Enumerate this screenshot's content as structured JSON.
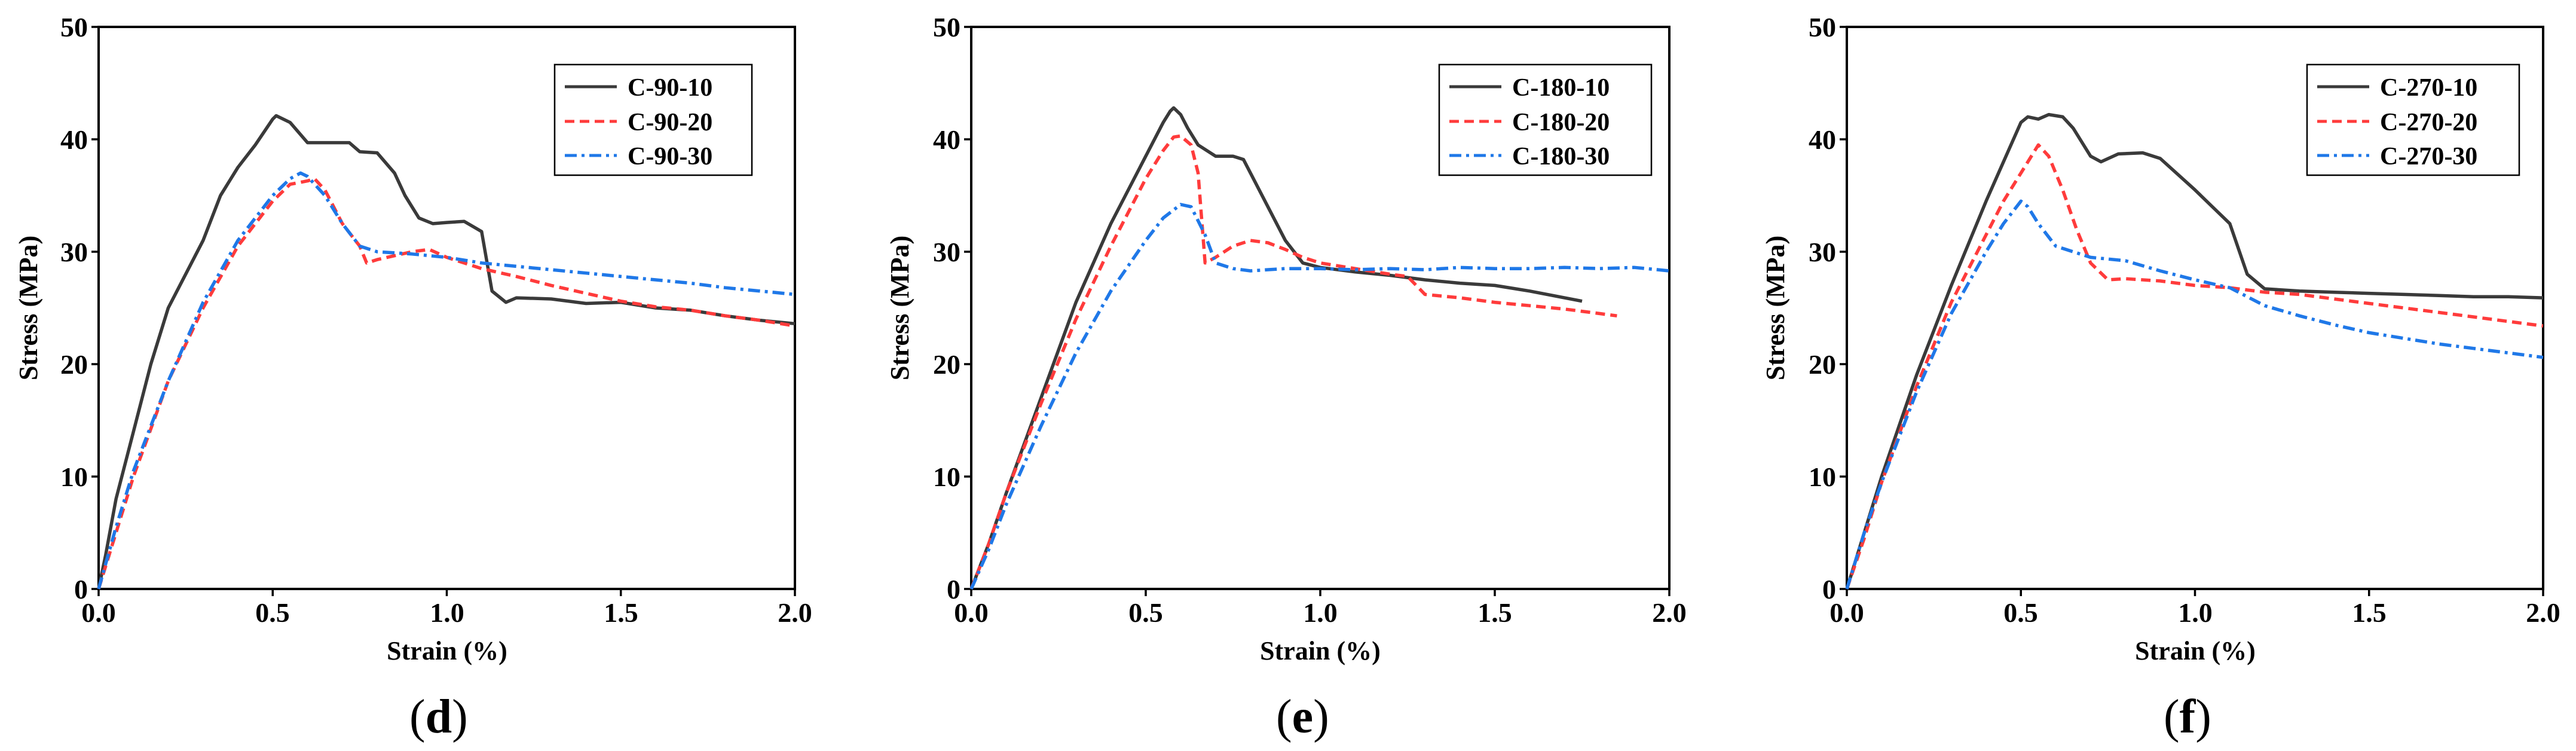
{
  "chart_data": [
    {
      "type": "line",
      "panel_label": "d",
      "xlabel": "Strain (%)",
      "ylabel": "Stress (MPa)",
      "xlim": [
        0,
        2.0
      ],
      "ylim": [
        0,
        50
      ],
      "xticks": [
        "0.0",
        "0.5",
        "1.0",
        "1.5",
        "2.0"
      ],
      "yticks": [
        "0",
        "10",
        "20",
        "30",
        "40",
        "50"
      ],
      "legend_position": "top-right",
      "series": [
        {
          "name": "C-90-10",
          "color": "#3a3a3a",
          "dash": "solid",
          "points": [
            [
              0,
              0
            ],
            [
              0.02,
              3
            ],
            [
              0.05,
              8
            ],
            [
              0.1,
              14
            ],
            [
              0.15,
              20
            ],
            [
              0.2,
              25
            ],
            [
              0.3,
              31
            ],
            [
              0.35,
              35
            ],
            [
              0.4,
              37.5
            ],
            [
              0.45,
              39.5
            ],
            [
              0.5,
              41.8
            ],
            [
              0.51,
              42.1
            ],
            [
              0.55,
              41.5
            ],
            [
              0.6,
              39.7
            ],
            [
              0.72,
              39.7
            ],
            [
              0.75,
              38.9
            ],
            [
              0.8,
              38.8
            ],
            [
              0.85,
              37
            ],
            [
              0.88,
              35
            ],
            [
              0.92,
              33
            ],
            [
              0.96,
              32.5
            ],
            [
              1.0,
              32.6
            ],
            [
              1.05,
              32.7
            ],
            [
              1.1,
              31.8
            ],
            [
              1.13,
              26.5
            ],
            [
              1.17,
              25.5
            ],
            [
              1.2,
              25.9
            ],
            [
              1.3,
              25.8
            ],
            [
              1.4,
              25.4
            ],
            [
              1.5,
              25.5
            ],
            [
              1.6,
              25.0
            ],
            [
              1.7,
              24.8
            ],
            [
              1.8,
              24.3
            ],
            [
              1.9,
              23.9
            ],
            [
              2.0,
              23.6
            ]
          ]
        },
        {
          "name": "C-90-20",
          "color": "#ff3b3b",
          "dash": "dashed",
          "points": [
            [
              0,
              0
            ],
            [
              0.05,
              5
            ],
            [
              0.1,
              10
            ],
            [
              0.2,
              18.5
            ],
            [
              0.3,
              25
            ],
            [
              0.4,
              30.5
            ],
            [
              0.5,
              34.5
            ],
            [
              0.55,
              36
            ],
            [
              0.6,
              36.3
            ],
            [
              0.62,
              36.5
            ],
            [
              0.65,
              35.5
            ],
            [
              0.7,
              32.5
            ],
            [
              0.75,
              30.5
            ],
            [
              0.77,
              29
            ],
            [
              0.8,
              29.3
            ],
            [
              0.9,
              30
            ],
            [
              0.95,
              30.2
            ],
            [
              1.0,
              29.5
            ],
            [
              1.1,
              28.5
            ],
            [
              1.2,
              27.8
            ],
            [
              1.3,
              27
            ],
            [
              1.4,
              26.3
            ],
            [
              1.5,
              25.6
            ],
            [
              1.6,
              25.1
            ],
            [
              1.7,
              24.8
            ],
            [
              1.8,
              24.3
            ],
            [
              1.9,
              23.9
            ],
            [
              2.0,
              23.4
            ]
          ]
        },
        {
          "name": "C-90-30",
          "color": "#1f78e8",
          "dash": "dashdot",
          "points": [
            [
              0,
              0
            ],
            [
              0.05,
              5.5
            ],
            [
              0.1,
              10.5
            ],
            [
              0.2,
              18.5
            ],
            [
              0.3,
              25.5
            ],
            [
              0.4,
              31
            ],
            [
              0.5,
              35
            ],
            [
              0.55,
              36.5
            ],
            [
              0.58,
              37
            ],
            [
              0.6,
              36.7
            ],
            [
              0.65,
              35
            ],
            [
              0.7,
              32.5
            ],
            [
              0.75,
              30.5
            ],
            [
              0.8,
              30
            ],
            [
              0.9,
              29.8
            ],
            [
              1.0,
              29.5
            ],
            [
              1.1,
              29
            ],
            [
              1.2,
              28.7
            ],
            [
              1.3,
              28.4
            ],
            [
              1.4,
              28.1
            ],
            [
              1.5,
              27.8
            ],
            [
              1.6,
              27.5
            ],
            [
              1.7,
              27.2
            ],
            [
              1.8,
              26.8
            ],
            [
              1.9,
              26.5
            ],
            [
              2.0,
              26.2
            ]
          ]
        }
      ]
    },
    {
      "type": "line",
      "panel_label": "e",
      "xlabel": "Strain (%)",
      "ylabel": "Stress (MPa)",
      "xlim": [
        0,
        2.0
      ],
      "ylim": [
        0,
        50
      ],
      "xticks": [
        "0.0",
        "0.5",
        "1.0",
        "1.5",
        "2.0"
      ],
      "yticks": [
        "0",
        "10",
        "20",
        "30",
        "40",
        "50"
      ],
      "legend_position": "top-right",
      "series": [
        {
          "name": "C-180-10",
          "color": "#3a3a3a",
          "dash": "solid",
          "points": [
            [
              0,
              0
            ],
            [
              0.05,
              4
            ],
            [
              0.1,
              8.5
            ],
            [
              0.2,
              17
            ],
            [
              0.3,
              25.5
            ],
            [
              0.4,
              32.5
            ],
            [
              0.5,
              38.5
            ],
            [
              0.55,
              41.5
            ],
            [
              0.57,
              42.5
            ],
            [
              0.58,
              42.8
            ],
            [
              0.6,
              42.2
            ],
            [
              0.62,
              41
            ],
            [
              0.65,
              39.5
            ],
            [
              0.7,
              38.5
            ],
            [
              0.75,
              38.5
            ],
            [
              0.78,
              38.2
            ],
            [
              0.8,
              37
            ],
            [
              0.85,
              34
            ],
            [
              0.9,
              31
            ],
            [
              0.95,
              29
            ],
            [
              1.0,
              28.6
            ],
            [
              1.1,
              28.2
            ],
            [
              1.2,
              27.9
            ],
            [
              1.3,
              27.5
            ],
            [
              1.4,
              27.2
            ],
            [
              1.5,
              27
            ],
            [
              1.6,
              26.5
            ],
            [
              1.7,
              25.9
            ],
            [
              1.75,
              25.6
            ]
          ]
        },
        {
          "name": "C-180-20",
          "color": "#ff3b3b",
          "dash": "dashed",
          "points": [
            [
              0,
              0
            ],
            [
              0.05,
              4
            ],
            [
              0.1,
              8.5
            ],
            [
              0.2,
              16.5
            ],
            [
              0.3,
              24
            ],
            [
              0.4,
              30.5
            ],
            [
              0.5,
              36.5
            ],
            [
              0.55,
              39
            ],
            [
              0.58,
              40.2
            ],
            [
              0.6,
              40.3
            ],
            [
              0.63,
              39.5
            ],
            [
              0.65,
              37
            ],
            [
              0.66,
              33
            ],
            [
              0.67,
              29
            ],
            [
              0.7,
              29.5
            ],
            [
              0.75,
              30.5
            ],
            [
              0.8,
              31
            ],
            [
              0.85,
              30.8
            ],
            [
              0.9,
              30.2
            ],
            [
              0.95,
              29.5
            ],
            [
              1.0,
              29
            ],
            [
              1.1,
              28.5
            ],
            [
              1.2,
              28
            ],
            [
              1.25,
              27.8
            ],
            [
              1.3,
              26.2
            ],
            [
              1.4,
              25.9
            ],
            [
              1.5,
              25.5
            ],
            [
              1.6,
              25.2
            ],
            [
              1.7,
              24.9
            ],
            [
              1.8,
              24.5
            ],
            [
              1.85,
              24.3
            ]
          ]
        },
        {
          "name": "C-180-30",
          "color": "#1f78e8",
          "dash": "dashdot",
          "points": [
            [
              0,
              0
            ],
            [
              0.05,
              3.5
            ],
            [
              0.1,
              7.5
            ],
            [
              0.2,
              14.5
            ],
            [
              0.3,
              21
            ],
            [
              0.4,
              26.5
            ],
            [
              0.5,
              31
            ],
            [
              0.55,
              33
            ],
            [
              0.6,
              34.2
            ],
            [
              0.63,
              34
            ],
            [
              0.67,
              31.5
            ],
            [
              0.7,
              29
            ],
            [
              0.75,
              28.5
            ],
            [
              0.8,
              28.3
            ],
            [
              0.9,
              28.5
            ],
            [
              1.0,
              28.5
            ],
            [
              1.1,
              28.4
            ],
            [
              1.2,
              28.5
            ],
            [
              1.3,
              28.4
            ],
            [
              1.4,
              28.6
            ],
            [
              1.5,
              28.5
            ],
            [
              1.6,
              28.5
            ],
            [
              1.7,
              28.6
            ],
            [
              1.8,
              28.5
            ],
            [
              1.9,
              28.6
            ],
            [
              2.0,
              28.3
            ]
          ]
        }
      ]
    },
    {
      "type": "line",
      "panel_label": "f",
      "xlabel": "Strain (%)",
      "ylabel": "Stress (MPa)",
      "xlim": [
        0,
        2.0
      ],
      "ylim": [
        0,
        50
      ],
      "xticks": [
        "0.0",
        "0.5",
        "1.0",
        "1.5",
        "2.0"
      ],
      "yticks": [
        "0",
        "10",
        "20",
        "30",
        "40",
        "50"
      ],
      "legend_position": "top-right",
      "series": [
        {
          "name": "C-270-10",
          "color": "#3a3a3a",
          "dash": "solid",
          "points": [
            [
              0,
              0
            ],
            [
              0.05,
              5
            ],
            [
              0.1,
              10
            ],
            [
              0.2,
              19
            ],
            [
              0.3,
              27
            ],
            [
              0.4,
              34.5
            ],
            [
              0.45,
              38
            ],
            [
              0.5,
              41.5
            ],
            [
              0.52,
              42
            ],
            [
              0.55,
              41.8
            ],
            [
              0.58,
              42.2
            ],
            [
              0.62,
              42
            ],
            [
              0.65,
              41
            ],
            [
              0.7,
              38.5
            ],
            [
              0.73,
              38
            ],
            [
              0.78,
              38.7
            ],
            [
              0.85,
              38.8
            ],
            [
              0.9,
              38.3
            ],
            [
              1.0,
              35.5
            ],
            [
              1.05,
              34
            ],
            [
              1.1,
              32.5
            ],
            [
              1.15,
              28
            ],
            [
              1.2,
              26.7
            ],
            [
              1.3,
              26.5
            ],
            [
              1.4,
              26.4
            ],
            [
              1.5,
              26.3
            ],
            [
              1.6,
              26.2
            ],
            [
              1.7,
              26.1
            ],
            [
              1.8,
              26
            ],
            [
              1.9,
              26
            ],
            [
              2.0,
              25.9
            ]
          ]
        },
        {
          "name": "C-270-20",
          "color": "#ff3b3b",
          "dash": "dashed",
          "points": [
            [
              0,
              0
            ],
            [
              0.05,
              4.5
            ],
            [
              0.1,
              9.5
            ],
            [
              0.2,
              18
            ],
            [
              0.3,
              25.5
            ],
            [
              0.4,
              31.5
            ],
            [
              0.45,
              34.5
            ],
            [
              0.5,
              37
            ],
            [
              0.55,
              39.5
            ],
            [
              0.58,
              38.5
            ],
            [
              0.62,
              35.5
            ],
            [
              0.66,
              32
            ],
            [
              0.7,
              29
            ],
            [
              0.75,
              27.5
            ],
            [
              0.8,
              27.6
            ],
            [
              0.9,
              27.4
            ],
            [
              1.0,
              27
            ],
            [
              1.1,
              26.8
            ],
            [
              1.2,
              26.4
            ],
            [
              1.3,
              26.2
            ],
            [
              1.4,
              25.8
            ],
            [
              1.5,
              25.4
            ],
            [
              1.6,
              25
            ],
            [
              1.7,
              24.6
            ],
            [
              1.8,
              24.2
            ],
            [
              1.9,
              23.8
            ],
            [
              2.0,
              23.4
            ]
          ]
        },
        {
          "name": "C-270-30",
          "color": "#1f78e8",
          "dash": "dashdot",
          "points": [
            [
              0,
              0
            ],
            [
              0.05,
              5
            ],
            [
              0.1,
              9.5
            ],
            [
              0.2,
              17.5
            ],
            [
              0.3,
              24.5
            ],
            [
              0.4,
              30
            ],
            [
              0.45,
              32.5
            ],
            [
              0.5,
              34.5
            ],
            [
              0.52,
              34
            ],
            [
              0.55,
              32.5
            ],
            [
              0.6,
              30.5
            ],
            [
              0.7,
              29.5
            ],
            [
              0.8,
              29.2
            ],
            [
              0.9,
              28.3
            ],
            [
              1.0,
              27.5
            ],
            [
              1.1,
              26.8
            ],
            [
              1.2,
              25.2
            ],
            [
              1.3,
              24.3
            ],
            [
              1.4,
              23.5
            ],
            [
              1.5,
              22.8
            ],
            [
              1.6,
              22.3
            ],
            [
              1.7,
              21.8
            ],
            [
              1.8,
              21.4
            ],
            [
              1.9,
              21
            ],
            [
              2.0,
              20.6
            ]
          ]
        }
      ]
    }
  ]
}
